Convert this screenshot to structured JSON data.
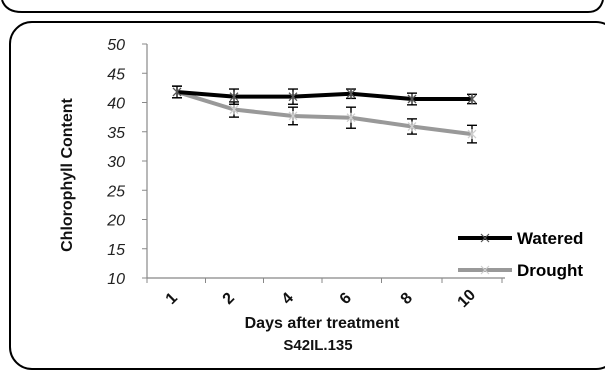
{
  "chart_data": {
    "type": "line",
    "categories": [
      "1",
      "2",
      "4",
      "6",
      "8",
      "10"
    ],
    "series": [
      {
        "name": "Watered",
        "color": "#000000",
        "values": [
          41.8,
          41.0,
          41.0,
          41.5,
          40.6,
          40.6
        ],
        "errors": [
          1.0,
          1.3,
          1.3,
          0.8,
          1.0,
          0.8
        ]
      },
      {
        "name": "Drought",
        "color": "#999999",
        "values": [
          41.8,
          38.8,
          37.7,
          37.4,
          35.9,
          34.6
        ],
        "errors": [
          1.0,
          1.3,
          1.5,
          1.8,
          1.3,
          1.5
        ]
      }
    ],
    "xlabel": "Days after treatment",
    "ylabel": "Chlorophyll Content",
    "subtitle": "S42IL.135",
    "ylim": [
      10,
      50
    ],
    "yticks": [
      "10",
      "15",
      "20",
      "25",
      "30",
      "35",
      "40",
      "45",
      "50"
    ],
    "grid": false,
    "legend_position": "right"
  }
}
